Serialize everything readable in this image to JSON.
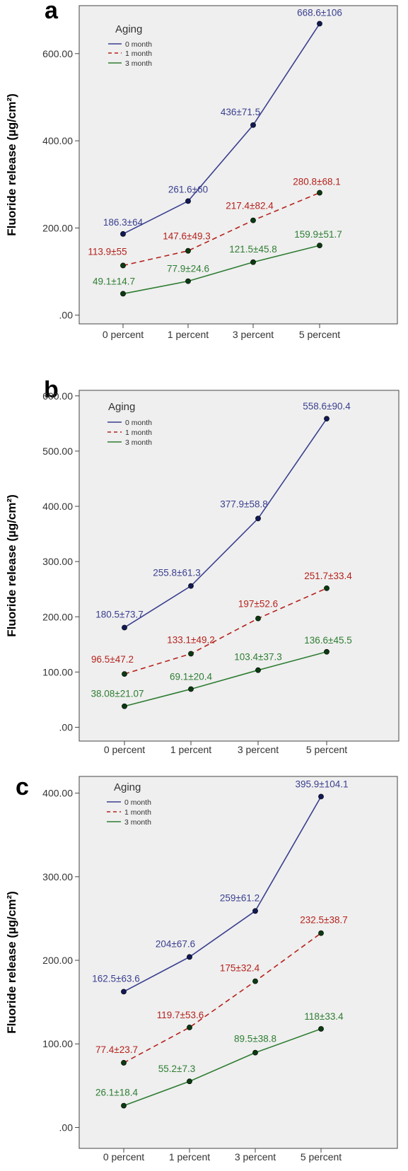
{
  "chart_data": [
    {
      "type": "line",
      "panel_label": "a",
      "ylabel": "Fluoride release (µg/cm²)",
      "xlabel": "",
      "categories": [
        "0 percent",
        "1 percent",
        "3 percent",
        "5 percent"
      ],
      "ylim": [
        -20,
        710
      ],
      "yticks": [
        0,
        200,
        400,
        600
      ],
      "ytick_labels": [
        ".00",
        "200.00",
        "400.00",
        "600.00"
      ],
      "legend": {
        "title": "Aging",
        "placement": "top-left"
      },
      "grid": false,
      "series": [
        {
          "name": "0 month",
          "color": "#3a3f8f",
          "dashed": false,
          "values": [
            186.3,
            261.6,
            436,
            668.6
          ],
          "labels": [
            "186.3±64",
            "261.6±60",
            "436±71.5",
            "668.6±106"
          ]
        },
        {
          "name": "1 month",
          "color": "#b5221c",
          "dashed": true,
          "values": [
            113.9,
            147.6,
            217.4,
            280.8
          ],
          "labels": [
            "113.9±55",
            "147.6±49.3",
            "217.4±82.4",
            "280.8±68.1"
          ]
        },
        {
          "name": "3 month",
          "color": "#2e7d32",
          "dashed": false,
          "values": [
            49.1,
            77.9,
            121.5,
            159.9
          ],
          "labels": [
            "49.1±14.7",
            "77.9±24.6",
            "121.5±45.8",
            "159.9±51.7"
          ]
        }
      ]
    },
    {
      "type": "line",
      "panel_label": "b",
      "ylabel": "Fluoride release (µg/cm²)",
      "xlabel": "",
      "categories": [
        "0 percent",
        "1 percent",
        "3 percent",
        "5 percent"
      ],
      "ylim": [
        -25,
        610
      ],
      "yticks": [
        0,
        100,
        200,
        300,
        400,
        500,
        600
      ],
      "ytick_labels": [
        ".00",
        "100.00",
        "200.00",
        "300.00",
        "400.00",
        "500.00",
        "600.00"
      ],
      "legend": {
        "title": "Aging",
        "placement": "top-left"
      },
      "grid": false,
      "series": [
        {
          "name": "0 month",
          "color": "#3a3f8f",
          "dashed": false,
          "values": [
            180.5,
            255.8,
            377.9,
            558.6
          ],
          "labels": [
            "180.5±73.7",
            "255.8±61.3",
            "377.9±58.8",
            "558.6±90.4"
          ]
        },
        {
          "name": "1 month",
          "color": "#b5221c",
          "dashed": true,
          "values": [
            96.5,
            133.1,
            197,
            251.7
          ],
          "labels": [
            "96.5±47.2",
            "133.1±49.2",
            "197±52.6",
            "251.7±33.4"
          ]
        },
        {
          "name": "3 month",
          "color": "#2e7d32",
          "dashed": false,
          "values": [
            38.08,
            69.1,
            103.4,
            136.6
          ],
          "labels": [
            "38.08±21.07",
            "69.1±20.4",
            "103.4±37.3",
            "136.6±45.5"
          ]
        }
      ]
    },
    {
      "type": "line",
      "panel_label": "c",
      "ylabel": "Fluoride release (µg/cm²)",
      "xlabel": "",
      "categories": [
        "0 percent",
        "1 percent",
        "3 percent",
        "5 percent"
      ],
      "ylim": [
        -25,
        420
      ],
      "yticks": [
        0,
        100,
        200,
        300,
        400
      ],
      "ytick_labels": [
        ".00",
        "100.00",
        "200.00",
        "300.00",
        "400.00"
      ],
      "legend": {
        "title": "Aging",
        "placement": "top-left"
      },
      "grid": false,
      "series": [
        {
          "name": "0 month",
          "color": "#3a3f8f",
          "dashed": false,
          "values": [
            162.5,
            204,
            259,
            395.9
          ],
          "labels": [
            "162.5±63.6",
            "204±67.6",
            "259±61.2",
            "395.9±104.1"
          ]
        },
        {
          "name": "1 month",
          "color": "#b5221c",
          "dashed": true,
          "values": [
            77.4,
            119.7,
            175,
            232.5
          ],
          "labels": [
            "77.4±23.7",
            "119.7±53.6",
            "175±32.4",
            "232.5±38.7"
          ]
        },
        {
          "name": "3 month",
          "color": "#2e7d32",
          "dashed": false,
          "values": [
            26.1,
            55.2,
            89.5,
            118
          ],
          "labels": [
            "26.1±18.4",
            "55.2±7.3",
            "89.5±38.8",
            "118±33.4"
          ]
        }
      ]
    }
  ]
}
